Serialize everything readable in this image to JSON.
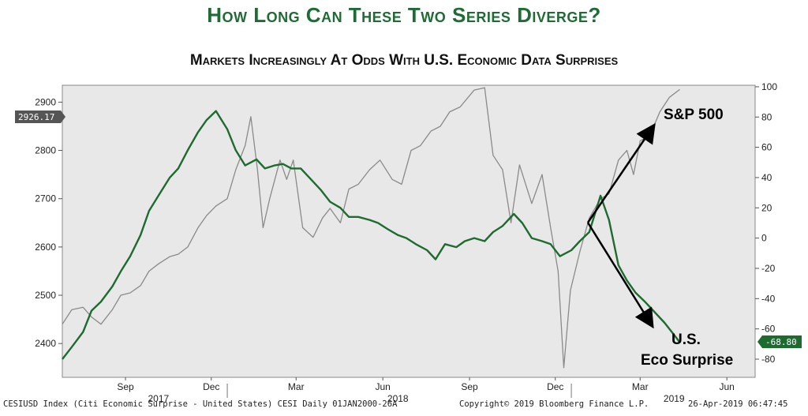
{
  "header": {
    "title": "How Long Can These Two Series Diverge?",
    "subtitle": "Markets Increasingly At Odds With U.S. Economic Data Surprises"
  },
  "chart_data": {
    "type": "line",
    "left_axis": {
      "ticks": [
        2400,
        2500,
        2600,
        2700,
        2800,
        2900
      ],
      "range": [
        2330,
        2935
      ]
    },
    "right_axis": {
      "ticks": [
        100,
        80,
        60,
        40,
        20,
        0,
        -20,
        -40,
        -60,
        -80
      ],
      "range": [
        -92,
        101
      ]
    },
    "x_axis": {
      "month_ticks": [
        "Sep",
        "Dec",
        "Mar",
        "Jun",
        "Sep",
        "Dec",
        "Mar",
        "Jun"
      ],
      "year_labels": [
        "2017",
        "2018",
        "2019"
      ],
      "range": [
        "2017-07-10",
        "2019-07-15"
      ]
    },
    "last_value_tags": {
      "left": "2926.17",
      "right": "-68.80"
    },
    "annotations": {
      "sp500": "S&P 500",
      "eco_line1": "U.S.",
      "eco_line2": "Eco Surprise"
    },
    "series": [
      {
        "axis": "right",
        "color": "#1e6b30",
        "x": [
          "2017-07-10",
          "2017-07-20",
          "2017-08-01",
          "2017-08-10",
          "2017-08-20",
          "2017-09-01",
          "2017-09-10",
          "2017-09-20",
          "2017-10-01",
          "2017-10-10",
          "2017-10-20",
          "2017-11-01",
          "2017-11-10",
          "2017-11-20",
          "2017-12-01",
          "2017-12-10",
          "2017-12-20",
          "2018-01-01",
          "2018-01-10",
          "2018-01-20",
          "2018-02-01",
          "2018-02-10",
          "2018-02-20",
          "2018-03-01",
          "2018-03-10",
          "2018-03-20",
          "2018-04-01",
          "2018-04-10",
          "2018-04-20",
          "2018-05-01",
          "2018-05-10",
          "2018-05-20",
          "2018-06-01",
          "2018-06-10",
          "2018-06-20",
          "2018-07-01",
          "2018-07-10",
          "2018-07-20",
          "2018-08-01",
          "2018-08-10",
          "2018-08-20",
          "2018-09-01",
          "2018-09-10",
          "2018-09-20",
          "2018-10-01",
          "2018-10-10",
          "2018-10-20",
          "2018-11-01",
          "2018-11-10",
          "2018-11-20",
          "2018-12-01",
          "2018-12-10",
          "2018-12-20",
          "2019-01-01",
          "2019-01-10",
          "2019-01-20",
          "2019-02-01",
          "2019-02-10",
          "2019-02-20",
          "2019-03-01",
          "2019-03-10",
          "2019-03-20",
          "2019-04-01",
          "2019-04-10",
          "2019-04-20",
          "2019-04-26"
        ],
        "values": [
          -80,
          -72,
          -62,
          -48,
          -42,
          -32,
          -22,
          -12,
          2,
          18,
          28,
          40,
          46,
          58,
          70,
          78,
          84,
          72,
          58,
          48,
          52,
          46,
          48,
          49,
          46,
          46,
          38,
          32,
          24,
          20,
          14,
          14,
          12,
          10,
          6,
          2,
          0,
          -4,
          -8,
          -14,
          -4,
          -6,
          -2,
          0,
          -2,
          4,
          8,
          16,
          10,
          0,
          -2,
          -4,
          -12,
          -8,
          -2,
          4,
          28,
          12,
          -18,
          -28,
          -36,
          -42,
          -50,
          -56,
          -64,
          -68.8
        ]
      },
      {
        "axis": "left",
        "color": "#8a8a8a",
        "x": [
          "2017-07-10",
          "2017-07-20",
          "2017-08-01",
          "2017-08-10",
          "2017-08-20",
          "2017-09-01",
          "2017-09-10",
          "2017-09-20",
          "2017-10-01",
          "2017-10-10",
          "2017-10-20",
          "2017-11-01",
          "2017-11-10",
          "2017-11-20",
          "2017-12-01",
          "2017-12-10",
          "2017-12-20",
          "2018-01-01",
          "2018-01-10",
          "2018-01-20",
          "2018-01-26",
          "2018-02-02",
          "2018-02-08",
          "2018-02-15",
          "2018-02-26",
          "2018-03-05",
          "2018-03-12",
          "2018-03-22",
          "2018-04-02",
          "2018-04-12",
          "2018-04-20",
          "2018-05-01",
          "2018-05-10",
          "2018-05-20",
          "2018-06-01",
          "2018-06-12",
          "2018-06-25",
          "2018-07-05",
          "2018-07-15",
          "2018-07-25",
          "2018-08-05",
          "2018-08-15",
          "2018-08-25",
          "2018-09-05",
          "2018-09-20",
          "2018-10-01",
          "2018-10-10",
          "2018-10-20",
          "2018-10-29",
          "2018-11-07",
          "2018-11-20",
          "2018-12-01",
          "2018-12-10",
          "2018-12-18",
          "2018-12-24",
          "2018-12-31",
          "2019-01-10",
          "2019-01-20",
          "2019-02-01",
          "2019-02-10",
          "2019-02-20",
          "2019-03-01",
          "2019-03-08",
          "2019-03-15",
          "2019-03-25",
          "2019-04-05",
          "2019-04-15",
          "2019-04-26"
        ],
        "values": [
          2440,
          2470,
          2475,
          2455,
          2440,
          2470,
          2500,
          2505,
          2520,
          2550,
          2565,
          2580,
          2585,
          2600,
          2640,
          2665,
          2685,
          2700,
          2760,
          2810,
          2870,
          2760,
          2640,
          2700,
          2780,
          2740,
          2780,
          2640,
          2620,
          2660,
          2680,
          2650,
          2720,
          2730,
          2760,
          2780,
          2740,
          2730,
          2800,
          2810,
          2840,
          2850,
          2880,
          2890,
          2925,
          2930,
          2790,
          2760,
          2650,
          2770,
          2690,
          2750,
          2640,
          2550,
          2350,
          2510,
          2590,
          2660,
          2700,
          2710,
          2780,
          2800,
          2750,
          2820,
          2830,
          2880,
          2910,
          2926.17
        ]
      }
    ]
  },
  "footer": {
    "left": "CESIUSD Index (Citi Economic Surprise - United States) CESI  Daily 01JAN2000-26A",
    "center": "Copyright© 2019 Bloomberg Finance L.P.",
    "right": "26-Apr-2019 06:47:45"
  }
}
